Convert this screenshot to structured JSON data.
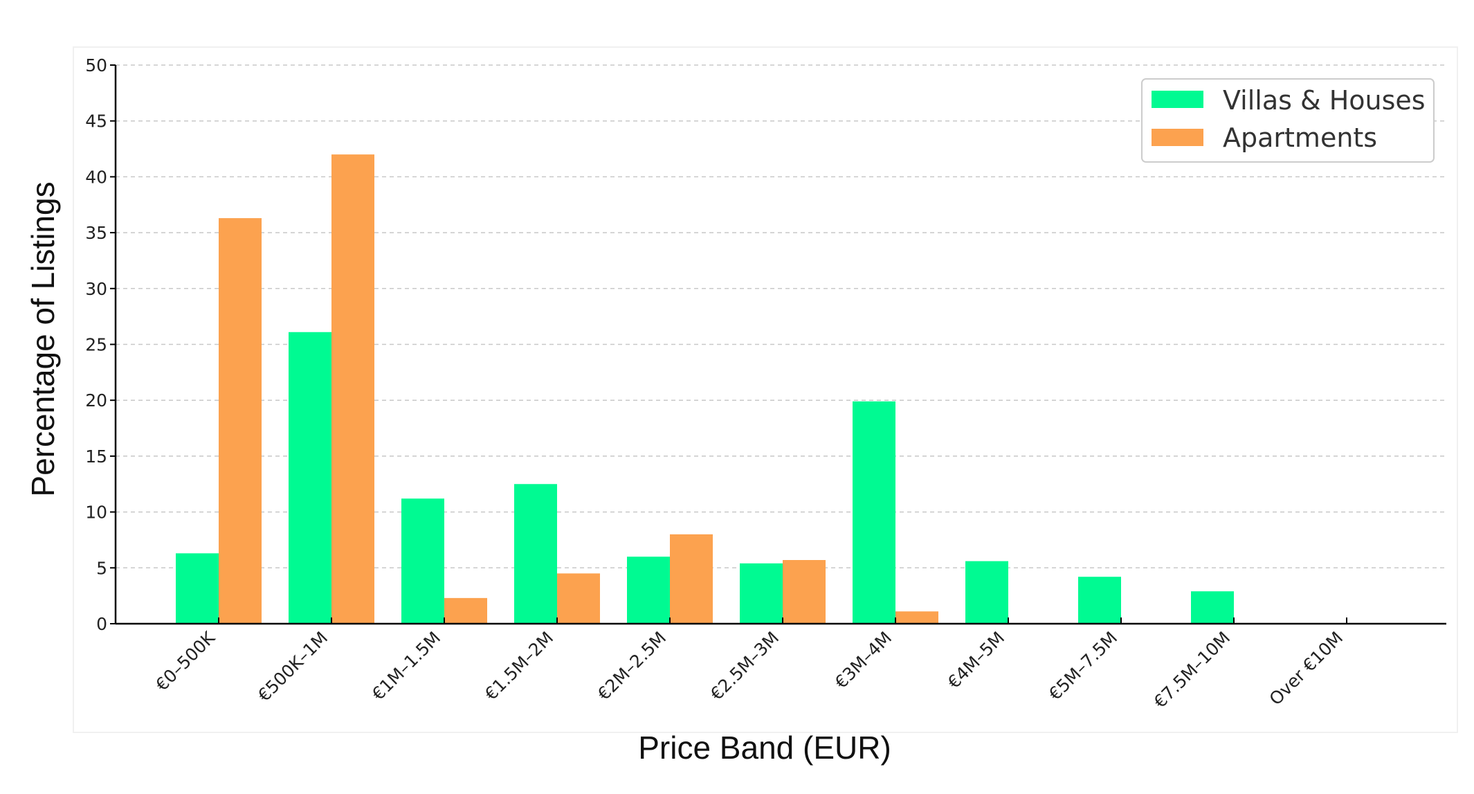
{
  "chart_data": {
    "type": "bar",
    "xlabel": "Price Band (EUR)",
    "ylabel": "Percentage of Listings",
    "ylim": [
      0,
      50
    ],
    "yticks": [
      0,
      5,
      10,
      15,
      20,
      25,
      30,
      35,
      40,
      45,
      50
    ],
    "grid": "y-dashed",
    "legend_position": "top-right",
    "categories": [
      "€0–500K",
      "€500K–1M",
      "€1M–1.5M",
      "€1.5M–2M",
      "€2M–2.5M",
      "€2.5M–3M",
      "€3M–4M",
      "€4M–5M",
      "€5M–7.5M",
      "€7.5M–10M",
      "Over €10M"
    ],
    "series": [
      {
        "name": "Villas & Houses",
        "color": "#00fa92",
        "values": [
          6.3,
          26.1,
          11.2,
          12.5,
          6.0,
          5.4,
          19.9,
          5.6,
          4.2,
          2.9,
          0
        ]
      },
      {
        "name": "Apartments",
        "color": "#fca24f",
        "values": [
          36.3,
          42.0,
          2.3,
          4.5,
          8.0,
          5.7,
          1.1,
          0,
          0,
          0,
          0
        ]
      }
    ]
  }
}
